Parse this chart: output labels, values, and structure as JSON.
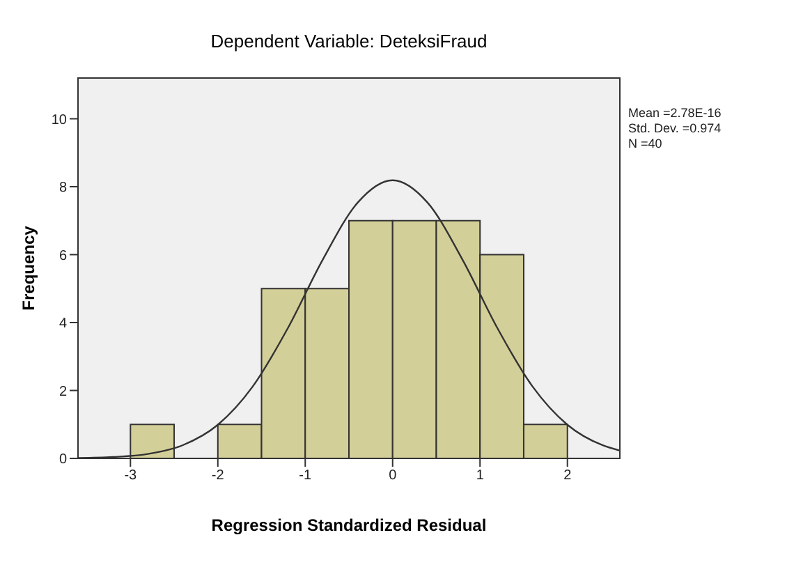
{
  "chart_data": {
    "type": "histogram",
    "title": "Dependent Variable: DeteksiFraud",
    "xlabel": "Regression Standardized Residual",
    "ylabel": "Frequency",
    "bins": [
      -3,
      -2.5,
      -2,
      -1.5,
      -1,
      -0.5,
      0,
      0.5,
      1,
      1.5,
      2
    ],
    "values": [
      1,
      0,
      1,
      5,
      5,
      7,
      7,
      7,
      6,
      1
    ],
    "color": "#d3cf98",
    "series": [
      {
        "type": "line",
        "color": "#333333",
        "x": [
          -3.6,
          -3.2,
          -2.8,
          -2.4,
          -2.0,
          -1.6,
          -1.2,
          -0.8,
          -0.4,
          0,
          0.4,
          0.8,
          1.2,
          1.6,
          2.0,
          2.4,
          2.6
        ],
        "values": [
          0.01,
          0.04,
          0.13,
          0.39,
          0.99,
          2.12,
          3.83,
          5.85,
          7.53,
          8.19,
          7.53,
          5.85,
          3.83,
          2.12,
          0.99,
          0.39,
          0.23
        ]
      }
    ],
    "xlim": [
      -3.6,
      2.6
    ],
    "xticks": [
      -3,
      -2,
      -1,
      0,
      1,
      2
    ],
    "ylim": [
      0,
      11.2
    ],
    "yticks": [
      0,
      2,
      4,
      6,
      8,
      10
    ],
    "marker": "none",
    "annotations": [
      "Mean =2.78E-16",
      "Std. Dev. =0.974",
      "N =40"
    ]
  }
}
